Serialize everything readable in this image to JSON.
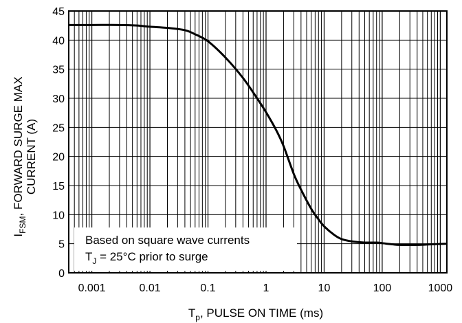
{
  "chart_data": {
    "type": "line",
    "xscale": "log",
    "xlim": [
      0.0004,
      1300
    ],
    "ylim": [
      0,
      45
    ],
    "grid": true,
    "x_ticks": [
      {
        "value": 0.001,
        "label": "0.001"
      },
      {
        "value": 0.01,
        "label": "0.01"
      },
      {
        "value": 0.1,
        "label": "0.1"
      },
      {
        "value": 1,
        "label": "1"
      },
      {
        "value": 10,
        "label": "10"
      },
      {
        "value": 100,
        "label": "100"
      },
      {
        "value": 1000,
        "label": "1000"
      }
    ],
    "y_ticks": [
      0,
      5,
      10,
      15,
      20,
      25,
      30,
      35,
      40,
      45
    ],
    "xlabel": {
      "main": "T",
      "sub": "p",
      "rest": ", PULSE ON TIME (ms)"
    },
    "ylabel": {
      "line1_main": "I",
      "line1_sub": "FSM",
      "line1_rest": ", FORWARD SURGE MAX",
      "line2": "CURRENT (A)"
    },
    "annotation": {
      "line1": "Based on square wave currents",
      "line2_main": "T",
      "line2_sub": "J",
      "line2_rest": " = 25°C prior to surge"
    },
    "series": [
      {
        "color": "#000000",
        "points": [
          [
            0.0004,
            42.6
          ],
          [
            0.001,
            42.6
          ],
          [
            0.003,
            42.6
          ],
          [
            0.006,
            42.5
          ],
          [
            0.01,
            42.3
          ],
          [
            0.02,
            42.1
          ],
          [
            0.04,
            41.7
          ],
          [
            0.06,
            41.0
          ],
          [
            0.1,
            39.8
          ],
          [
            0.2,
            37.0
          ],
          [
            0.4,
            33.5
          ],
          [
            0.7,
            30.0
          ],
          [
            1,
            27.6
          ],
          [
            1.5,
            24.5
          ],
          [
            2,
            21.8
          ],
          [
            3,
            17.0
          ],
          [
            4,
            14.3
          ],
          [
            6,
            11.0
          ],
          [
            8,
            9.2
          ],
          [
            10,
            8.0
          ],
          [
            15,
            6.5
          ],
          [
            20,
            5.8
          ],
          [
            30,
            5.4
          ],
          [
            50,
            5.2
          ],
          [
            80,
            5.2
          ],
          [
            100,
            5.1
          ],
          [
            150,
            4.9
          ],
          [
            200,
            4.8
          ],
          [
            400,
            4.8
          ],
          [
            700,
            4.9
          ],
          [
            1300,
            5.0
          ]
        ]
      }
    ]
  }
}
